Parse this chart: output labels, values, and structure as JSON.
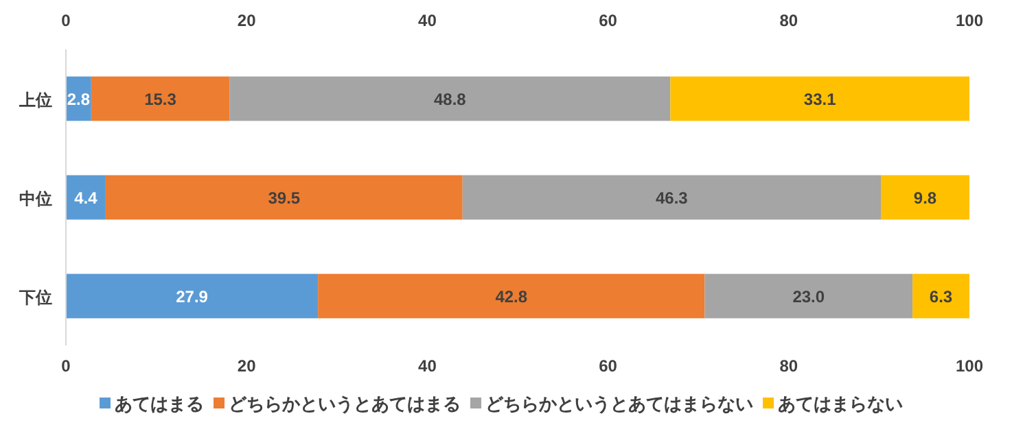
{
  "chart_data": {
    "type": "bar",
    "orientation": "horizontal",
    "stacked": true,
    "categories": [
      "上位",
      "中位",
      "下位"
    ],
    "series": [
      {
        "name": "あてはまる",
        "color": "#5b9bd5",
        "values": [
          2.8,
          4.4,
          27.9
        ]
      },
      {
        "name": "どちらかというとあてはまる",
        "color": "#ed7d31",
        "values": [
          15.3,
          39.5,
          42.8
        ]
      },
      {
        "name": "どちらかというとあてはまらない",
        "color": "#a5a5a5",
        "values": [
          48.8,
          46.3,
          23.0
        ],
        "value_labels": [
          "48.8",
          "46.3",
          "23.0"
        ]
      },
      {
        "name": "あてはまらない",
        "color": "#ffc000",
        "values": [
          33.1,
          9.8,
          6.3
        ]
      }
    ],
    "xlim": [
      0,
      100
    ],
    "xticks": [
      0,
      20,
      40,
      60,
      80,
      100
    ],
    "x2lim": [
      0,
      100
    ],
    "x2ticks": [
      0,
      20,
      40,
      60,
      80,
      100
    ],
    "data_labels": true,
    "legend": "bottom",
    "grid": false
  }
}
